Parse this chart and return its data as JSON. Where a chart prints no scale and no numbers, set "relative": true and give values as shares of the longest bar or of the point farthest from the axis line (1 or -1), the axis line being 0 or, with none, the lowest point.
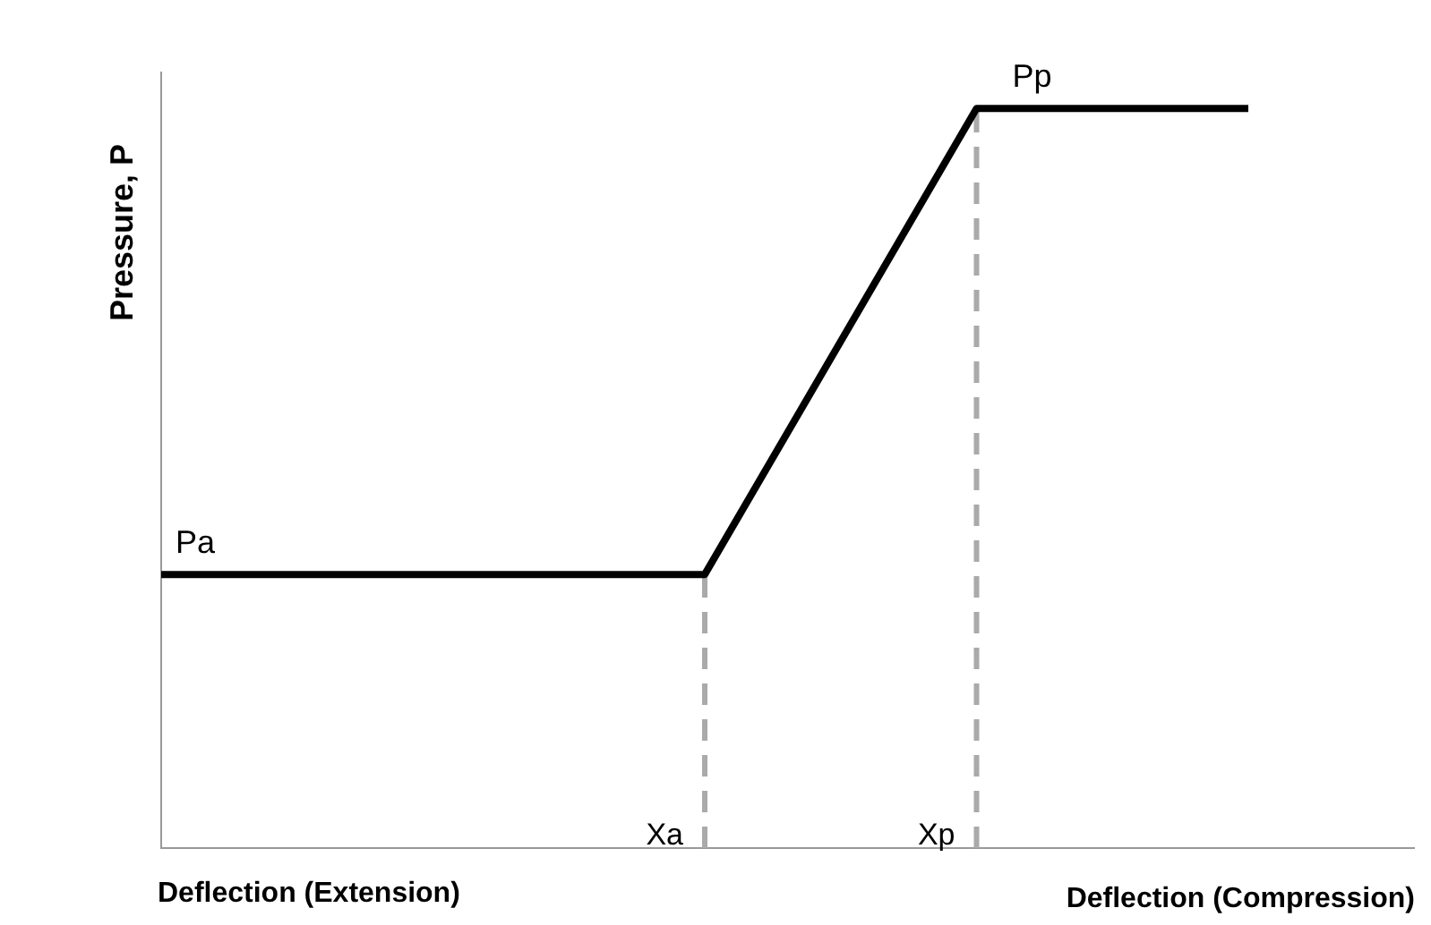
{
  "chart_data": {
    "type": "line",
    "relative": true,
    "ylabel": "Pressure, P",
    "categories": [
      null,
      null,
      "Xa",
      "Xp",
      null
    ],
    "series": [
      {
        "color": "#000000",
        "values": [
          0.37,
          0.37,
          0.37,
          1,
          1
        ]
      }
    ],
    "ref_lines": [
      {
        "axis": "x",
        "value": "Xa",
        "color": "#aaaaaa",
        "line_style": "dashed"
      },
      {
        "axis": "x",
        "value": "Xp",
        "color": "#aaaaaa",
        "line_style": "dashed"
      }
    ],
    "annotations": [
      {
        "text": "Pa",
        "y": 0.37
      },
      {
        "text": "Pp",
        "y": 1
      },
      "Deflection (Extension)",
      "Deflection (Compression)"
    ],
    "legend": false,
    "marker": "none",
    "line_style": "solid"
  }
}
